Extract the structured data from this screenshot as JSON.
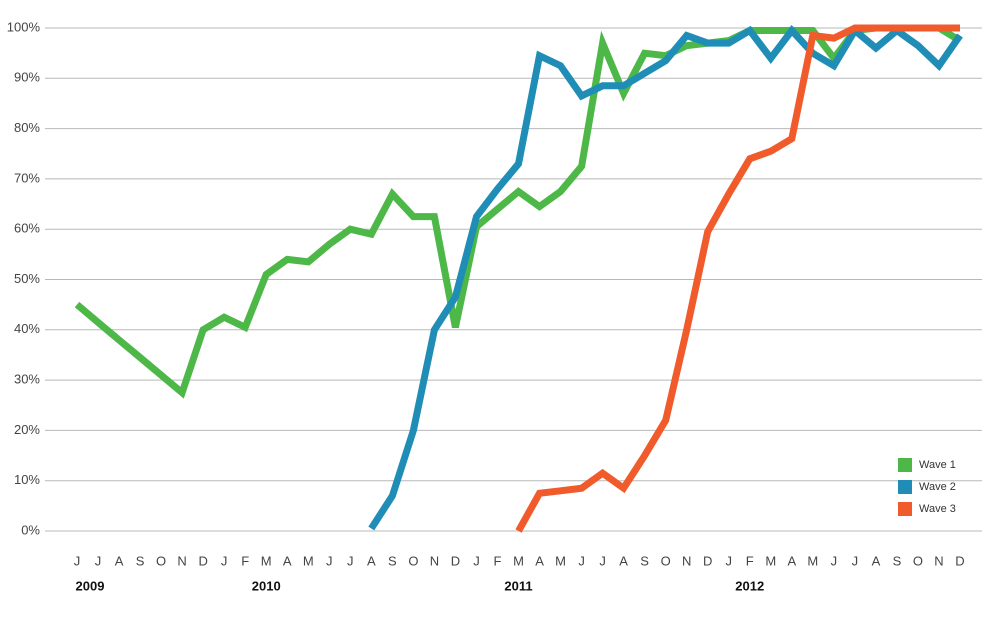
{
  "chart_data": {
    "type": "line",
    "categories": [
      "J",
      "J",
      "A",
      "S",
      "O",
      "N",
      "D",
      "J",
      "F",
      "M",
      "A",
      "M",
      "J",
      "J",
      "A",
      "S",
      "O",
      "N",
      "D",
      "J",
      "F",
      "M",
      "A",
      "M",
      "J",
      "J",
      "A",
      "S",
      "O",
      "N",
      "D",
      "J",
      "F",
      "M",
      "A",
      "M",
      "J",
      "J",
      "A",
      "S",
      "O",
      "N",
      "D"
    ],
    "year_labels": [
      "2009",
      null,
      null,
      null,
      null,
      null,
      null,
      null,
      null,
      "2010",
      null,
      null,
      null,
      null,
      null,
      null,
      null,
      null,
      null,
      null,
      null,
      "2011",
      null,
      null,
      null,
      null,
      null,
      null,
      null,
      null,
      null,
      null,
      "2012",
      null,
      null,
      null,
      null,
      null,
      null,
      null,
      null,
      null,
      null
    ],
    "series": [
      {
        "name": "Wave 1",
        "color": "#4db848",
        "values": [
          45,
          41.5,
          38,
          34.5,
          31,
          27.5,
          40,
          42.5,
          40.5,
          51,
          54,
          53.5,
          57,
          60,
          59,
          67,
          62.5,
          62.5,
          40.5,
          60.5,
          64,
          67.5,
          64.5,
          67.5,
          72.5,
          97,
          87,
          95,
          94.5,
          96.5,
          97,
          97.5,
          99.5,
          99.5,
          99.5,
          99.5,
          94,
          99.5,
          100,
          100,
          100,
          100,
          97.5
        ]
      },
      {
        "name": "Wave 2",
        "color": "#1f8db5",
        "values": [
          null,
          null,
          null,
          null,
          null,
          null,
          null,
          null,
          null,
          null,
          null,
          null,
          null,
          null,
          0.5,
          7,
          20,
          40,
          46.5,
          62.5,
          68,
          73,
          94.5,
          92.5,
          86.5,
          88.5,
          88.5,
          91,
          93.5,
          98.5,
          97,
          97,
          99.5,
          94,
          99.5,
          95,
          92.5,
          99.5,
          96,
          99.5,
          96.5,
          92.5,
          98.5
        ]
      },
      {
        "name": "Wave 3",
        "color": "#f15a2b",
        "values": [
          null,
          null,
          null,
          null,
          null,
          null,
          null,
          null,
          null,
          null,
          null,
          null,
          null,
          null,
          null,
          null,
          null,
          null,
          null,
          null,
          null,
          0,
          7.5,
          8,
          8.5,
          11.5,
          8.5,
          15,
          22,
          40,
          59.5,
          67,
          74,
          75.5,
          78,
          98.5,
          98,
          100,
          100,
          100,
          100,
          100,
          100
        ]
      }
    ],
    "ylim": [
      0,
      100
    ],
    "yticks": [
      {
        "value": 0,
        "label": "0%"
      },
      {
        "value": 10,
        "label": "10%"
      },
      {
        "value": 20,
        "label": "20%"
      },
      {
        "value": 30,
        "label": "30%"
      },
      {
        "value": 40,
        "label": "40%"
      },
      {
        "value": 50,
        "label": "50%"
      },
      {
        "value": 60,
        "label": "60%"
      },
      {
        "value": 70,
        "label": "70%"
      },
      {
        "value": 80,
        "label": "80%"
      },
      {
        "value": 90,
        "label": "90%"
      },
      {
        "value": 100,
        "label": "100%"
      }
    ],
    "grid": true,
    "legend": "bottom-right"
  }
}
